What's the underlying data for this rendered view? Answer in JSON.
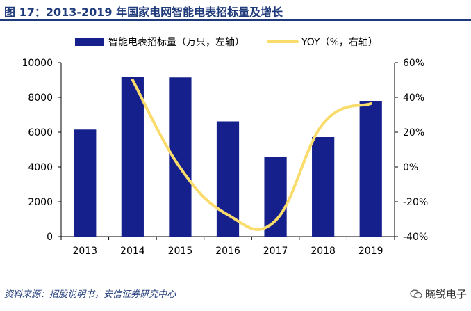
{
  "header": {
    "title": "图 17：2013-2019 年国家电网智能电表招标量及增长"
  },
  "footer": {
    "source": "资料来源：招股说明书，安信证券研究中心",
    "watermark": "晓锐电子"
  },
  "colors": {
    "bar": "#16208c",
    "line": "#f9dc6b",
    "title": "#1f3a7a"
  },
  "chart_data": {
    "type": "bar",
    "categories": [
      "2013",
      "2014",
      "2015",
      "2016",
      "2017",
      "2018",
      "2019"
    ],
    "series": [
      {
        "name": "智能电表招标量（万只，左轴）",
        "type": "bar",
        "axis": "left",
        "values": [
          6150,
          9200,
          9150,
          6620,
          4580,
          5720,
          7800
        ]
      },
      {
        "name": "YOY（%，右轴）",
        "type": "line",
        "axis": "right",
        "values": [
          null,
          50,
          -0.5,
          -27.5,
          -30.8,
          24.9,
          36.4
        ]
      }
    ],
    "ylim_left": [
      0,
      10000
    ],
    "yticks_left": [
      "0",
      "2000",
      "4000",
      "6000",
      "8000",
      "10000"
    ],
    "ylim_right": [
      -40,
      60
    ],
    "yticks_right": [
      "-40%",
      "-20%",
      "0%",
      "20%",
      "40%",
      "60%"
    ],
    "legend_position": "top"
  }
}
